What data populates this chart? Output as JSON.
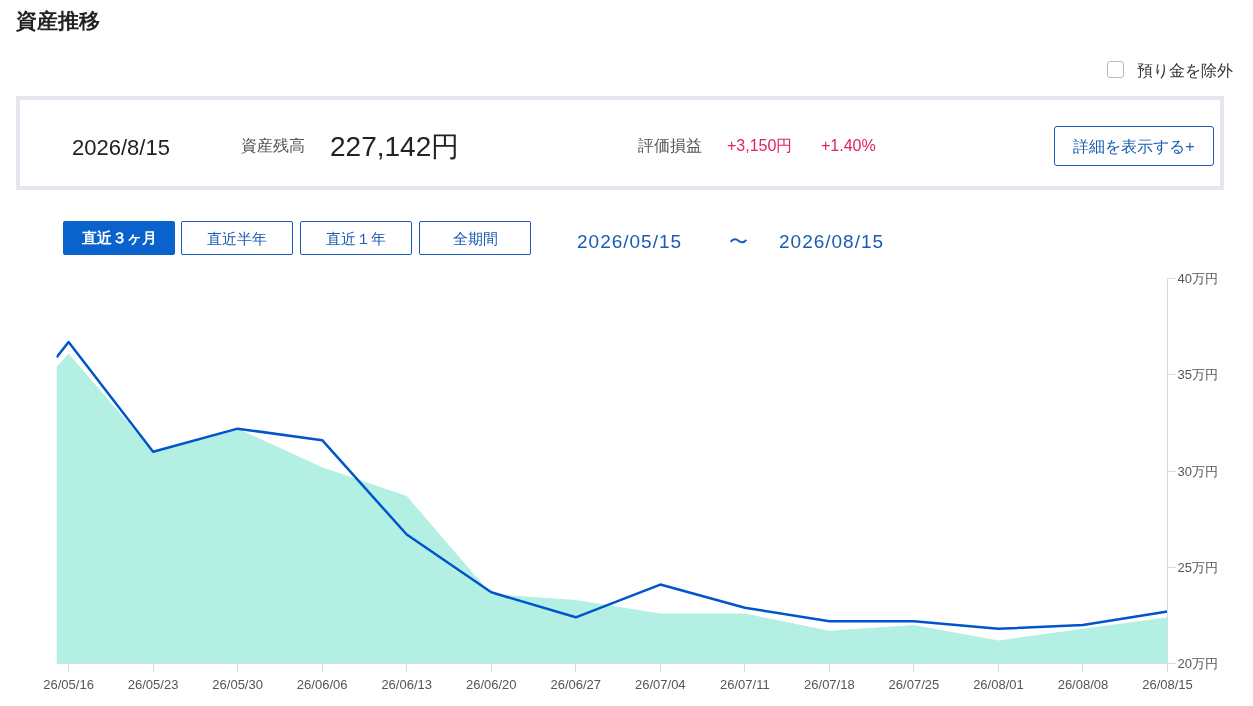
{
  "chart_data": {
    "type": "area",
    "title": "資産推移",
    "x": [
      "2026-05-15",
      "2026-05-16",
      "2026-05-23",
      "2026-05-30",
      "2026-06-06",
      "2026-06-13",
      "2026-06-20",
      "2026-06-27",
      "2026-07-04",
      "2026-07-11",
      "2026-07-18",
      "2026-07-25",
      "2026-08-01",
      "2026-08-08",
      "2026-08-15"
    ],
    "series": [
      {
        "color": "#b3f0e3",
        "values": [
          35.4,
          36.1,
          31.0,
          32.2,
          30.2,
          28.7,
          23.6,
          23.3,
          22.6,
          22.6,
          21.7,
          22.0,
          21.2,
          21.8,
          22.4
        ]
      },
      {
        "type": "line",
        "color": "#0055cc",
        "values": [
          35.9,
          36.7,
          31.0,
          32.2,
          31.6,
          26.7,
          23.7,
          22.4,
          24.1,
          22.9,
          22.2,
          22.2,
          21.8,
          22.0,
          22.7
        ]
      }
    ],
    "xlim": [
      "2026-05-15",
      "2026-08-15"
    ],
    "xticks": [
      {
        "value": "2026-05-16",
        "label": "26/05/16"
      },
      {
        "value": "2026-05-23",
        "label": "26/05/23"
      },
      {
        "value": "2026-05-30",
        "label": "26/05/30"
      },
      {
        "value": "2026-06-06",
        "label": "26/06/06"
      },
      {
        "value": "2026-06-13",
        "label": "26/06/13"
      },
      {
        "value": "2026-06-20",
        "label": "26/06/20"
      },
      {
        "value": "2026-06-27",
        "label": "26/06/27"
      },
      {
        "value": "2026-07-04",
        "label": "26/07/04"
      },
      {
        "value": "2026-07-11",
        "label": "26/07/11"
      },
      {
        "value": "2026-07-18",
        "label": "26/07/18"
      },
      {
        "value": "2026-07-25",
        "label": "26/07/25"
      },
      {
        "value": "2026-08-01",
        "label": "26/08/01"
      },
      {
        "value": "2026-08-08",
        "label": "26/08/08"
      },
      {
        "value": "2026-08-15",
        "label": "26/08/15"
      }
    ],
    "ylim": [
      20,
      40
    ],
    "yticks": [
      {
        "value": 20,
        "label": "20万円"
      },
      {
        "value": 25,
        "label": "25万円"
      },
      {
        "value": 30,
        "label": "30万円"
      },
      {
        "value": 35,
        "label": "35万円"
      },
      {
        "value": 40,
        "label": "40万円"
      }
    ],
    "grid": false,
    "line_style": "solid",
    "marker": "none",
    "annotations": [
      "預り金を除外",
      "2026/8/15",
      "資産残高",
      "227,142円",
      "評価損益",
      "+3,150円",
      "+1.40%",
      "詳細を表示する+",
      "直近３ヶ月",
      "直近半年",
      "直近１年",
      "全期間",
      "2026/05/15",
      "〜",
      "2026/08/15"
    ]
  }
}
